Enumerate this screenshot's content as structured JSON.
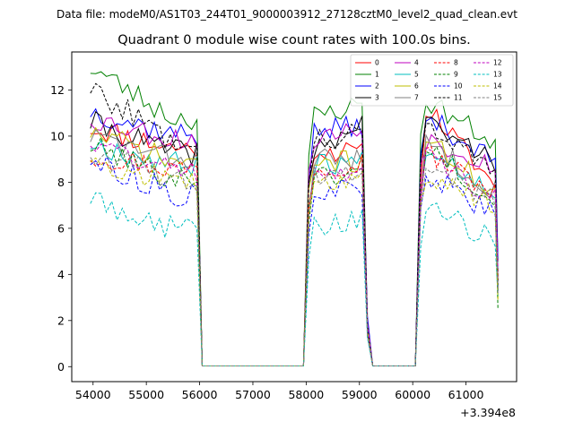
{
  "chart_data": {
    "type": "line",
    "suptitle": "Data file: modeM0/AS1T03_244T01_9000003912_27128cztM0_level2_quad_clean.evt",
    "title": "Quadrant 0 module wise count rates with 100.0s bins.",
    "xlabel": "",
    "ylabel": "",
    "x_offset_label": "+3.394e8",
    "xlim": [
      53600,
      61950
    ],
    "ylim": [
      -0.65,
      13.65
    ],
    "xticks": [
      54000,
      55000,
      56000,
      57000,
      58000,
      59000,
      60000,
      61000
    ],
    "yticks": [
      0,
      2,
      4,
      6,
      8,
      10,
      12
    ],
    "legend_position": "upper right",
    "x": [
      53950,
      54050,
      54150,
      54250,
      54350,
      54450,
      54550,
      54650,
      54750,
      54850,
      54950,
      55050,
      55150,
      55250,
      55350,
      55450,
      55550,
      55650,
      55750,
      55850,
      55950,
      56050,
      56150,
      56250,
      56350,
      56450,
      56550,
      56650,
      56750,
      56850,
      56950,
      57050,
      57150,
      57250,
      57350,
      57450,
      57550,
      57650,
      57750,
      57850,
      57950,
      58050,
      58150,
      58250,
      58350,
      58450,
      58550,
      58650,
      58750,
      58850,
      58950,
      59050,
      59150,
      59250,
      59350,
      59450,
      59550,
      59650,
      59750,
      59850,
      59950,
      60050,
      60150,
      60250,
      60350,
      60450,
      60550,
      60650,
      60750,
      60850,
      60950,
      61050,
      61150,
      61250,
      61350,
      61450,
      61550,
      61600
    ],
    "gap_rate": 0.03,
    "series": [
      {
        "name": "0",
        "color": "#ff0000",
        "dashed": false,
        "levels": [
          10.4,
          9.5,
          9.2,
          11.6
        ],
        "seed": 11
      },
      {
        "name": "1",
        "color": "#008000",
        "dashed": false,
        "levels": [
          13.0,
          10.8,
          11.4,
          11.7
        ],
        "seed": 23
      },
      {
        "name": "2",
        "color": "#0000ff",
        "dashed": false,
        "levels": [
          11.1,
          10.1,
          10.5,
          11.0
        ],
        "seed": 37
      },
      {
        "name": "3",
        "color": "#000000",
        "dashed": false,
        "levels": [
          10.6,
          9.3,
          10.5,
          10.7
        ],
        "seed": 41
      },
      {
        "name": "4",
        "color": "#bf00bf",
        "dashed": false,
        "levels": [
          10.8,
          9.9,
          10.3,
          10.0
        ],
        "seed": 53
      },
      {
        "name": "5",
        "color": "#00bfbf",
        "dashed": false,
        "levels": [
          9.7,
          8.8,
          8.9,
          9.8
        ],
        "seed": 67
      },
      {
        "name": "6",
        "color": "#bfbf00",
        "dashed": false,
        "levels": [
          10.2,
          8.9,
          8.9,
          10.0
        ],
        "seed": 71
      },
      {
        "name": "7",
        "color": "#808080",
        "dashed": false,
        "levels": [
          10.0,
          9.0,
          9.0,
          10.0
        ],
        "seed": 83
      },
      {
        "name": "8",
        "color": "#ff0000",
        "dashed": true,
        "levels": [
          9.2,
          8.6,
          8.9,
          9.4
        ],
        "seed": 97
      },
      {
        "name": "9",
        "color": "#008000",
        "dashed": true,
        "levels": [
          9.6,
          8.2,
          8.4,
          9.9
        ],
        "seed": 101
      },
      {
        "name": "10",
        "color": "#0000ff",
        "dashed": true,
        "levels": [
          9.0,
          7.5,
          7.7,
          8.5
        ],
        "seed": 113
      },
      {
        "name": "11",
        "color": "#000000",
        "dashed": true,
        "levels": [
          12.1,
          9.8,
          10.1,
          10.8
        ],
        "seed": 127
      },
      {
        "name": "12",
        "color": "#bf00bf",
        "dashed": true,
        "levels": [
          9.8,
          8.5,
          8.6,
          9.3
        ],
        "seed": 131
      },
      {
        "name": "13",
        "color": "#00bfbf",
        "dashed": true,
        "levels": [
          7.3,
          6.0,
          6.4,
          7.1
        ],
        "seed": 149
      },
      {
        "name": "14",
        "color": "#bfbf00",
        "dashed": true,
        "levels": [
          9.1,
          8.0,
          8.3,
          8.5
        ],
        "seed": 157
      },
      {
        "name": "15",
        "color": "#808080",
        "dashed": true,
        "levels": [
          9.3,
          8.2,
          8.5,
          9.0
        ],
        "seed": 163
      }
    ]
  }
}
